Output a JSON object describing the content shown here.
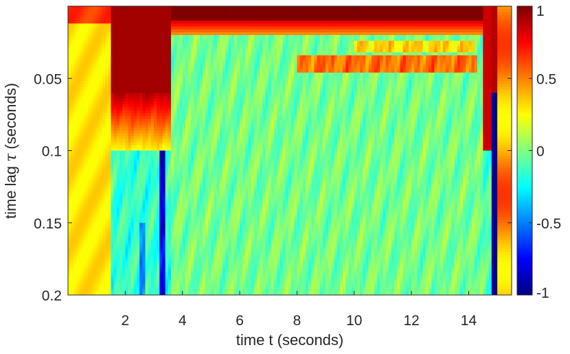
{
  "chart_data": {
    "type": "heatmap",
    "title": "",
    "xlabel": "time t (seconds)",
    "ylabel_text": "time lag ",
    "ylabel_symbol": "τ",
    "ylabel_unit": " (seconds)",
    "xlim": [
      0,
      15.5
    ],
    "ylim": [
      0,
      0.2
    ],
    "y_reversed": true,
    "x_ticks": [
      2,
      4,
      6,
      8,
      10,
      12,
      14
    ],
    "x_tick_labels": [
      "2",
      "4",
      "6",
      "8",
      "10",
      "12",
      "14"
    ],
    "y_ticks": [
      0.05,
      0.1,
      0.15,
      0.2
    ],
    "y_tick_labels": [
      "0.05",
      "0.1",
      "0.15",
      "0.2"
    ],
    "colormap": "jet",
    "clim": [
      -1,
      1
    ],
    "colorbar_ticks": [
      1,
      0.5,
      0,
      -0.5,
      -1
    ],
    "colorbar_tick_labels": [
      "1",
      "0.5",
      "0",
      "-0.5",
      "-1"
    ],
    "grid": false,
    "regions": [
      {
        "t_start": 0,
        "t_end": 1.5,
        "lag_range": [
          0,
          0.2
        ],
        "value": 0.3,
        "description": "uniform yellow-orange band"
      },
      {
        "t_start": 1.5,
        "t_end": 3.6,
        "lag_range": [
          0,
          0.09
        ],
        "value": 0.9,
        "description": "strong positive correlation (red)"
      },
      {
        "t_start": 3.2,
        "t_end": 3.4,
        "lag_range": [
          0.12,
          0.2
        ],
        "value": -0.8,
        "description": "negative dip (dark blue)"
      },
      {
        "t_start": 3.6,
        "t_end": 14.5,
        "lag_range": [
          0,
          0.012
        ],
        "value": 1.0,
        "description": "top band (dark red)"
      },
      {
        "t_start": 8.0,
        "t_end": 14.2,
        "lag_range": [
          0.035,
          0.045
        ],
        "value": 0.7,
        "description": "secondary positive ridge"
      },
      {
        "t_start": 14.8,
        "t_end": 14.95,
        "lag_range": [
          0.1,
          0.2
        ],
        "value": -1.0,
        "description": "sharp negative stripe"
      },
      {
        "t_start": 3.6,
        "t_end": 14.5,
        "lag_range": [
          0.05,
          0.2
        ],
        "value": 0.0,
        "description": "oscillating around zero (cyan/green)"
      }
    ]
  }
}
